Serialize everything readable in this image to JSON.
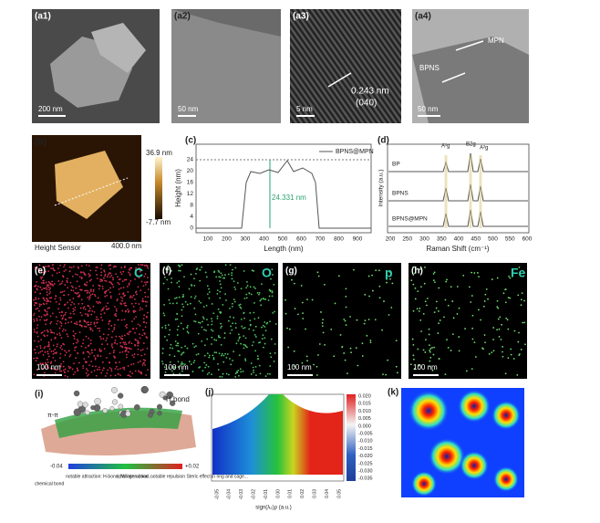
{
  "panels": {
    "a1": {
      "label": "(a1)",
      "scale_bar": "200 nm"
    },
    "a2": {
      "label": "(a2)",
      "scale_bar": "50 nm"
    },
    "a3": {
      "label": "(a3)",
      "scale_bar": "5 nm",
      "spacing": "0.243 nm",
      "plane": "(040)"
    },
    "a4": {
      "label": "(a4)",
      "scale_bar": "50 nm",
      "arrow_1": "MPN",
      "arrow_2": "BPNS"
    },
    "b": {
      "label": "(b)",
      "color_max": "36.9 nm",
      "color_min": "-7.7 nm",
      "caption": "Height Sensor",
      "scale_bar": "400.0 nm"
    },
    "c": {
      "label": "(c)",
      "legend": "BPNS@MPN",
      "annotation": "24.331 nm",
      "y_label": "Height (nm)",
      "x_label": "Length (nm)",
      "yticks": [
        "0",
        "4",
        "8",
        "12",
        "16",
        "20",
        "24"
      ],
      "xticks": [
        "100",
        "200",
        "300",
        "400",
        "500",
        "600",
        "700",
        "800",
        "900"
      ]
    },
    "d": {
      "label": "(d)",
      "y_label": "Intensity (a.u.)",
      "x_label": "Raman Shift (cm⁻¹)",
      "xticks": [
        "200",
        "250",
        "300",
        "350",
        "400",
        "450",
        "500",
        "550",
        "600"
      ],
      "series": [
        "BP",
        "BPNS",
        "BPNS@MPN"
      ],
      "peaks": [
        "A¹g",
        "B2g",
        "A²g"
      ]
    },
    "e": {
      "label": "(e)",
      "element": "C",
      "scale_bar": "100 nm"
    },
    "f": {
      "label": "(f)",
      "element": "O",
      "scale_bar": "100 nm"
    },
    "g": {
      "label": "(g)",
      "element": "p",
      "scale_bar": "100 nm"
    },
    "h": {
      "label": "(h)",
      "element": "Fe",
      "scale_bar": "100 nm"
    },
    "i": {
      "label": "(i)",
      "pi_stack": "π-π",
      "h_bond": "H bond",
      "bar_min": "-0.04",
      "bar_max": "+0.02",
      "chemical_bond": "chemical bond",
      "attraction": "notable attraction: H-bond, halogen-bond...",
      "vdw": "vdW interaction",
      "repulsion": "notable repulsion Steric effect in ring and cage..."
    },
    "j": {
      "label": "(j)",
      "x_label": "sign(λ₂)ρ (a.u.)",
      "colorbar_ticks": [
        "0.020",
        "0.015",
        "0.010",
        "0.005",
        "0.000",
        "-0.005",
        "-0.010",
        "-0.015",
        "-0.020",
        "-0.025",
        "-0.030",
        "-0.035"
      ],
      "xticks": [
        "-0.05",
        "-0.04",
        "-0.03",
        "-0.02",
        "-0.01",
        "0.00",
        "0.01",
        "0.02",
        "0.03",
        "0.04",
        "0.05"
      ]
    },
    "k": {
      "label": "(k)"
    }
  }
}
